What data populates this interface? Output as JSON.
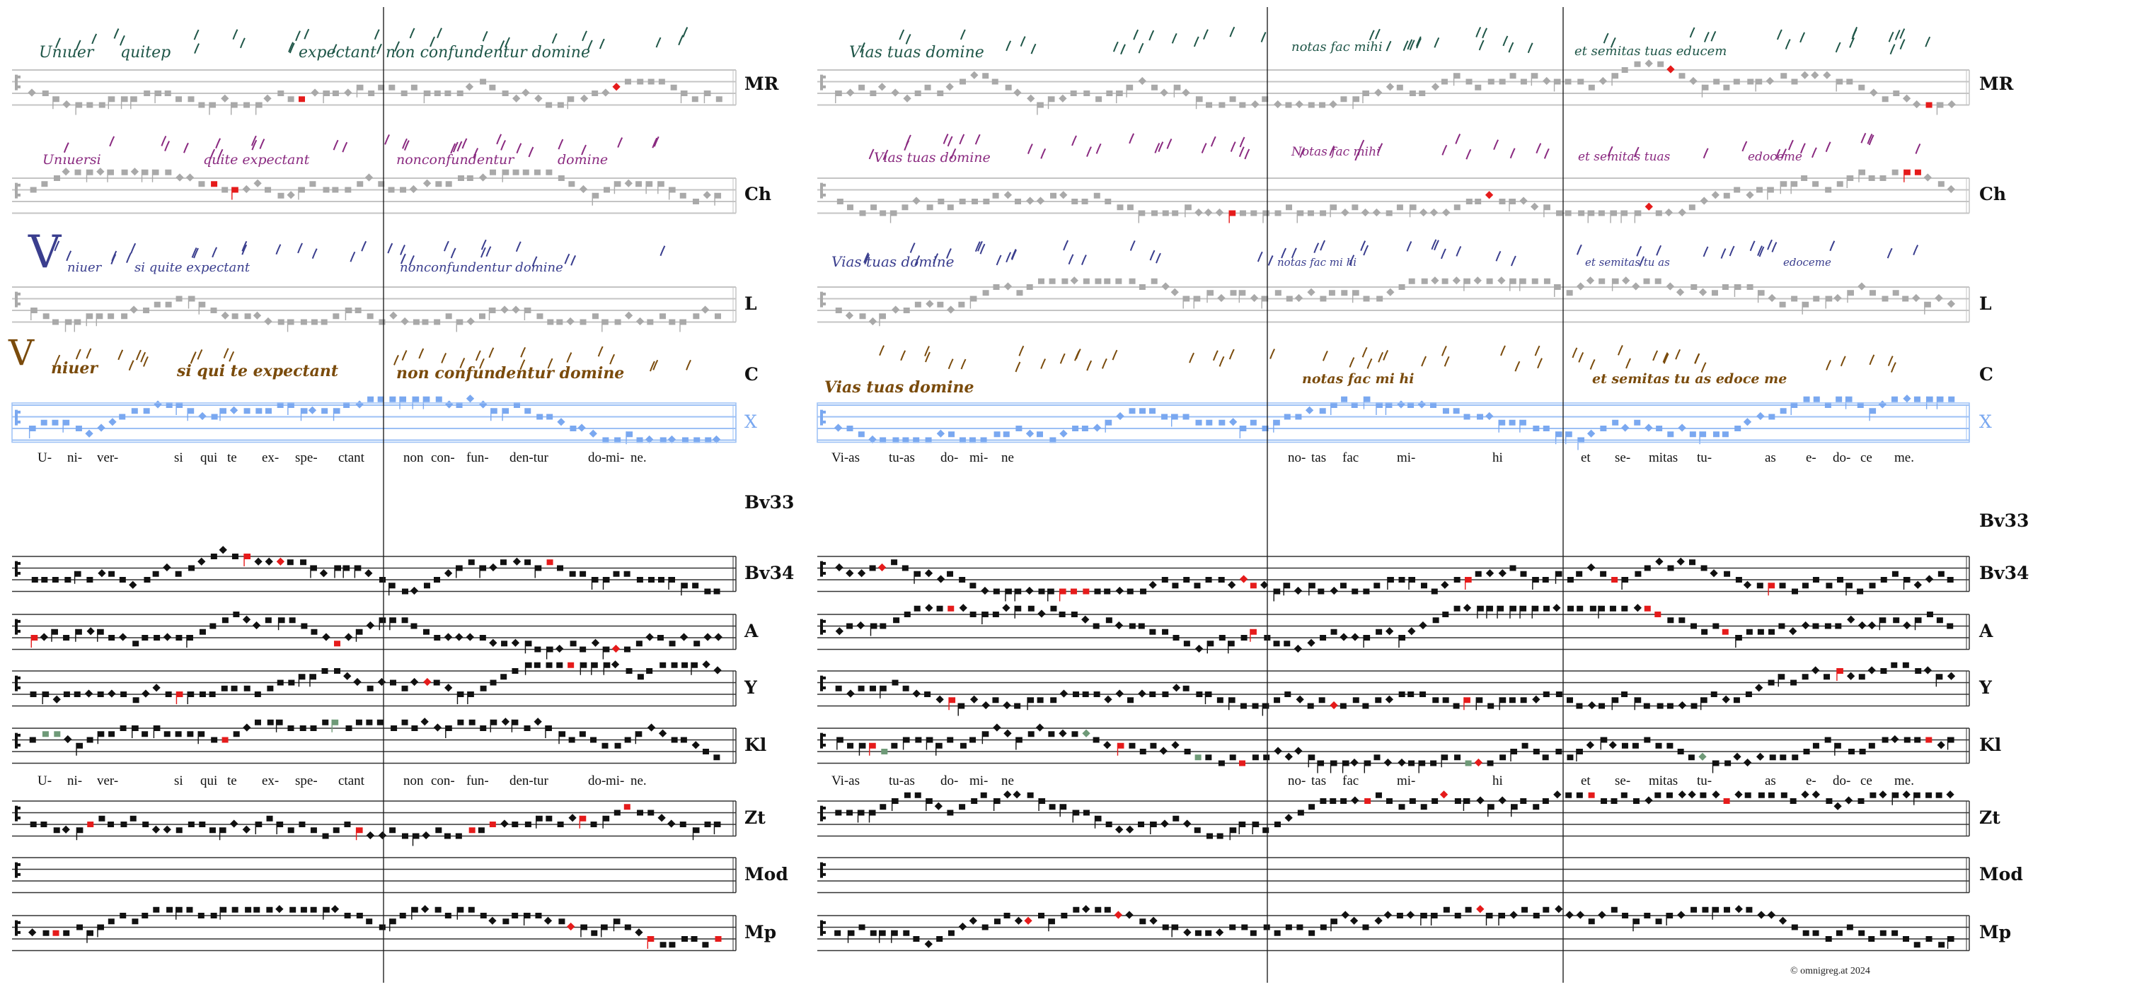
{
  "colors": {
    "gray": "#a9a9a9",
    "blue": "#7aa8f0",
    "black": "#111111",
    "red": "#e51b1b",
    "green": "#6f9a78",
    "MR": "#1f5648",
    "Ch": "#8a2a80",
    "L": "#3a3e8e",
    "C": "#7a4b0c"
  },
  "labels": {
    "MR": "MR",
    "Ch": "Ch",
    "L": "L",
    "C": "C",
    "X": "X",
    "Bv33": "Bv33",
    "Bv34": "Bv34",
    "A": "A",
    "Y": "Y",
    "Kl": "Kl",
    "Zt": "Zt",
    "Mod": "Mod",
    "Mp": "Mp"
  },
  "lyrics": {
    "left": [
      "U-",
      "ni-",
      "ver-",
      "si",
      "qui",
      "te",
      "ex-",
      "spe-",
      "ctant",
      "non",
      "con-",
      "fun-",
      "den-tur",
      "do-",
      "mi-",
      "ne."
    ],
    "right": [
      "Vi-as",
      "tu-as",
      "do-",
      "mi-",
      "ne",
      "no-",
      "tas",
      "fac",
      "mi-",
      "hi",
      "et",
      "se-",
      "mitas",
      "tu-",
      "as",
      "e-",
      "do-",
      "ce",
      "me."
    ]
  },
  "manuscripts": {
    "MR": {
      "left": [
        "Unıuer",
        "quitep",
        "expectant",
        "non confundentur domine"
      ],
      "right": [
        "Vias tuas domine",
        "notas fac mihi",
        "et semitas tuas educem"
      ]
    },
    "Ch": {
      "left": [
        "Unıuersi",
        "quite expectant",
        "nonconfundentur",
        "domine"
      ],
      "right": [
        "Vias tuas domine",
        "Notas fac mihi",
        "et semitas tuas",
        "edoceme"
      ]
    },
    "L": {
      "initial": "V",
      "left": [
        "niuer",
        "si quite expectant",
        "nonconfundentur domine"
      ],
      "right": [
        "Vias tuas domine",
        "notas fac mi hi",
        "et semitas tu as",
        "edoceme"
      ]
    },
    "C": {
      "initial": "V",
      "left": [
        "niuer",
        "si qui te expectant",
        "non confundentur domine"
      ],
      "right": [
        "Vias tuas domine",
        "notas fac mi hi",
        "et semitas tu as edoce me"
      ]
    }
  },
  "footer": {
    "copyright": "© omnigreg.at   2024"
  }
}
